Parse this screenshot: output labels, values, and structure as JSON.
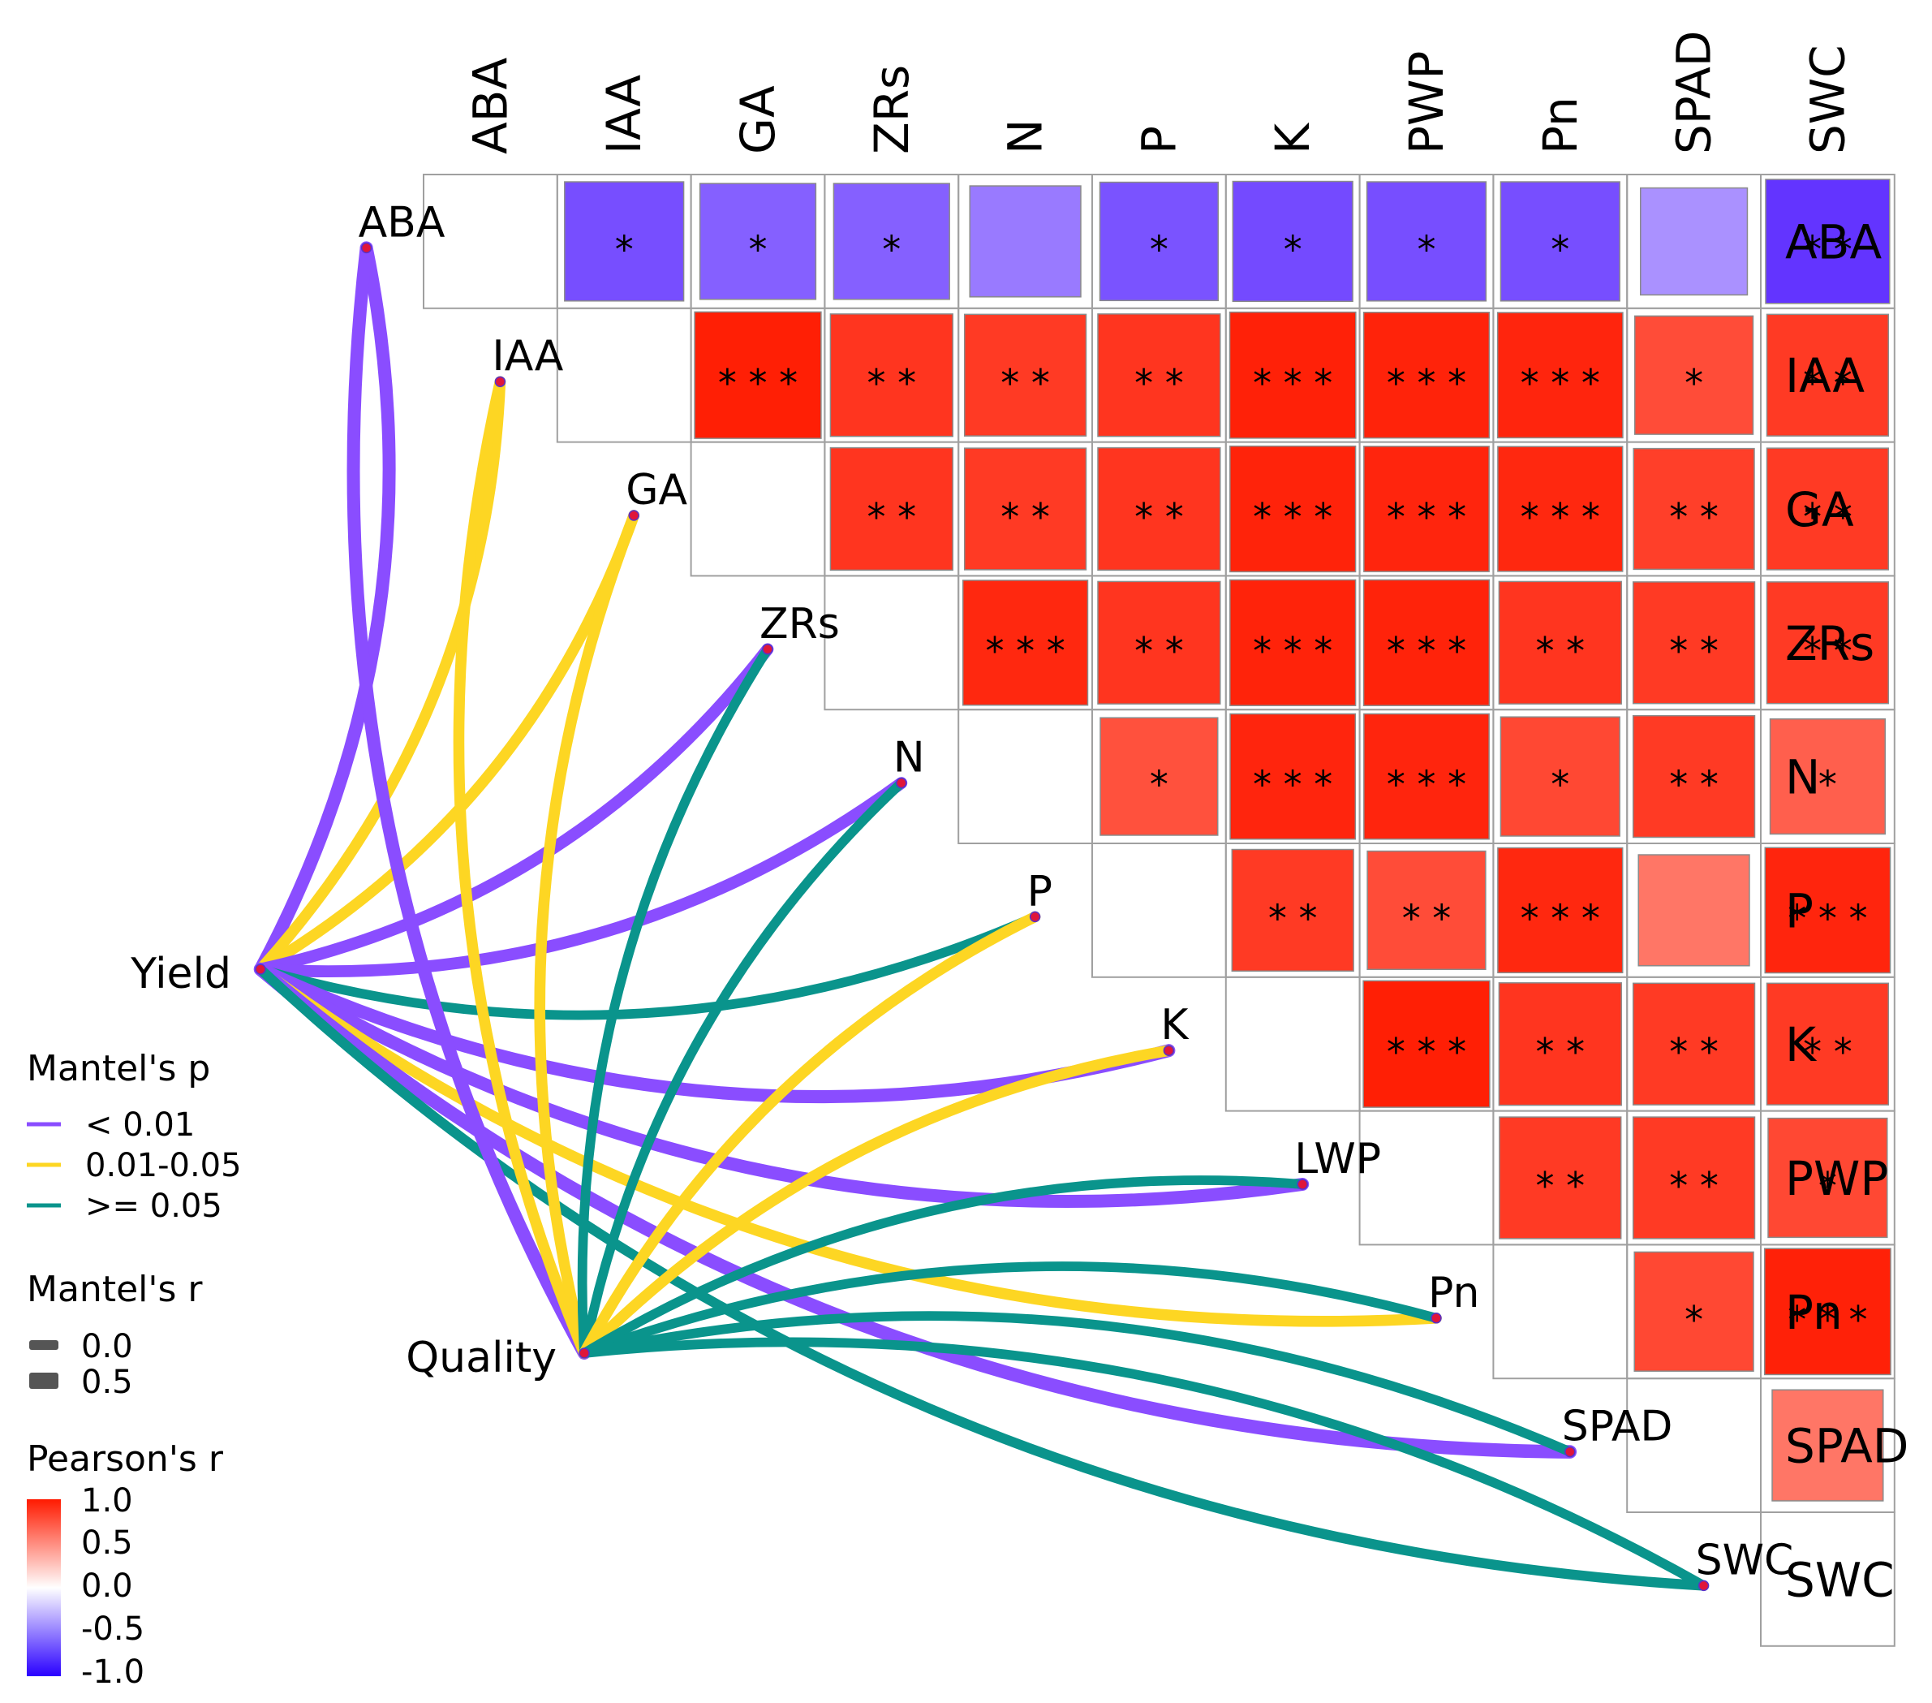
{
  "chart_data": {
    "type": "heatmap",
    "subtype": "mantel-correlation-heatmap",
    "variables": [
      "ABA",
      "IAA",
      "GA",
      "ZRs",
      "N",
      "P",
      "K",
      "PWP",
      "Pn",
      "SPAD",
      "SWC"
    ],
    "row_labels": [
      "ABA",
      "IAA",
      "GA",
      "ZRs",
      "N",
      "P",
      "K",
      "PWP",
      "Pn",
      "SPAD",
      "SWC"
    ],
    "node_labels": [
      "ABA",
      "IAA",
      "GA",
      "ZRs",
      "N",
      "P",
      "K",
      "LWP",
      "Pn",
      "SPAD",
      "SWC"
    ],
    "pearson_cells": [
      {
        "row": "ABA",
        "col": "IAA",
        "r": -0.8,
        "sig": "*"
      },
      {
        "row": "ABA",
        "col": "GA",
        "r": -0.72,
        "sig": "*"
      },
      {
        "row": "ABA",
        "col": "ZRs",
        "r": -0.72,
        "sig": "*"
      },
      {
        "row": "ABA",
        "col": "N",
        "r": -0.6,
        "sig": ""
      },
      {
        "row": "ABA",
        "col": "P",
        "r": -0.78,
        "sig": "*"
      },
      {
        "row": "ABA",
        "col": "K",
        "r": -0.82,
        "sig": "*"
      },
      {
        "row": "ABA",
        "col": "PWP",
        "r": -0.8,
        "sig": "*"
      },
      {
        "row": "ABA",
        "col": "Pn",
        "r": -0.8,
        "sig": "*"
      },
      {
        "row": "ABA",
        "col": "SPAD",
        "r": -0.5,
        "sig": ""
      },
      {
        "row": "ABA",
        "col": "SWC",
        "r": -0.92,
        "sig": "**"
      },
      {
        "row": "IAA",
        "col": "GA",
        "r": 0.98,
        "sig": "***"
      },
      {
        "row": "IAA",
        "col": "ZRs",
        "r": 0.88,
        "sig": "**"
      },
      {
        "row": "IAA",
        "col": "N",
        "r": 0.86,
        "sig": "**"
      },
      {
        "row": "IAA",
        "col": "P",
        "r": 0.88,
        "sig": "**"
      },
      {
        "row": "IAA",
        "col": "K",
        "r": 0.97,
        "sig": "***"
      },
      {
        "row": "IAA",
        "col": "PWP",
        "r": 0.96,
        "sig": "***"
      },
      {
        "row": "IAA",
        "col": "Pn",
        "r": 0.95,
        "sig": "***"
      },
      {
        "row": "IAA",
        "col": "SPAD",
        "r": 0.78,
        "sig": "*"
      },
      {
        "row": "IAA",
        "col": "SWC",
        "r": 0.86,
        "sig": "**"
      },
      {
        "row": "GA",
        "col": "ZRs",
        "r": 0.88,
        "sig": "**"
      },
      {
        "row": "GA",
        "col": "N",
        "r": 0.86,
        "sig": "**"
      },
      {
        "row": "GA",
        "col": "P",
        "r": 0.88,
        "sig": "**"
      },
      {
        "row": "GA",
        "col": "K",
        "r": 0.96,
        "sig": "***"
      },
      {
        "row": "GA",
        "col": "PWP",
        "r": 0.95,
        "sig": "***"
      },
      {
        "row": "GA",
        "col": "Pn",
        "r": 0.94,
        "sig": "***"
      },
      {
        "row": "GA",
        "col": "SPAD",
        "r": 0.84,
        "sig": "**"
      },
      {
        "row": "GA",
        "col": "SWC",
        "r": 0.86,
        "sig": "**"
      },
      {
        "row": "ZRs",
        "col": "N",
        "r": 0.94,
        "sig": "***"
      },
      {
        "row": "ZRs",
        "col": "P",
        "r": 0.88,
        "sig": "**"
      },
      {
        "row": "ZRs",
        "col": "K",
        "r": 0.96,
        "sig": "***"
      },
      {
        "row": "ZRs",
        "col": "PWP",
        "r": 0.96,
        "sig": "***"
      },
      {
        "row": "ZRs",
        "col": "Pn",
        "r": 0.88,
        "sig": "**"
      },
      {
        "row": "ZRs",
        "col": "SPAD",
        "r": 0.86,
        "sig": "**"
      },
      {
        "row": "ZRs",
        "col": "SWC",
        "r": 0.86,
        "sig": "**"
      },
      {
        "row": "N",
        "col": "P",
        "r": 0.76,
        "sig": "*"
      },
      {
        "row": "N",
        "col": "K",
        "r": 0.95,
        "sig": "***"
      },
      {
        "row": "N",
        "col": "PWP",
        "r": 0.95,
        "sig": "***"
      },
      {
        "row": "N",
        "col": "Pn",
        "r": 0.8,
        "sig": "*"
      },
      {
        "row": "N",
        "col": "SPAD",
        "r": 0.86,
        "sig": "**"
      },
      {
        "row": "N",
        "col": "SWC",
        "r": 0.7,
        "sig": "*"
      },
      {
        "row": "P",
        "col": "K",
        "r": 0.86,
        "sig": "**"
      },
      {
        "row": "P",
        "col": "PWP",
        "r": 0.78,
        "sig": "**"
      },
      {
        "row": "P",
        "col": "Pn",
        "r": 0.94,
        "sig": "***"
      },
      {
        "row": "P",
        "col": "SPAD",
        "r": 0.6,
        "sig": ""
      },
      {
        "row": "P",
        "col": "SWC",
        "r": 0.95,
        "sig": "***"
      },
      {
        "row": "K",
        "col": "PWP",
        "r": 0.98,
        "sig": "***"
      },
      {
        "row": "K",
        "col": "Pn",
        "r": 0.88,
        "sig": "**"
      },
      {
        "row": "K",
        "col": "SPAD",
        "r": 0.86,
        "sig": "**"
      },
      {
        "row": "K",
        "col": "SWC",
        "r": 0.86,
        "sig": "**"
      },
      {
        "row": "PWP",
        "col": "Pn",
        "r": 0.86,
        "sig": "**"
      },
      {
        "row": "PWP",
        "col": "SPAD",
        "r": 0.86,
        "sig": "**"
      },
      {
        "row": "PWP",
        "col": "SWC",
        "r": 0.8,
        "sig": "*"
      },
      {
        "row": "Pn",
        "col": "SPAD",
        "r": 0.8,
        "sig": "*"
      },
      {
        "row": "Pn",
        "col": "SWC",
        "r": 0.97,
        "sig": "***"
      },
      {
        "row": "SPAD",
        "col": "SWC",
        "r": 0.6,
        "sig": ""
      }
    ],
    "groups": [
      "Yield",
      "Quality"
    ],
    "mantel_links": [
      {
        "from": "Yield",
        "to": "ABA",
        "p_class": "lt001",
        "r": 0.5
      },
      {
        "from": "Yield",
        "to": "IAA",
        "p_class": "mid",
        "r": 0.3
      },
      {
        "from": "Yield",
        "to": "GA",
        "p_class": "mid",
        "r": 0.3
      },
      {
        "from": "Yield",
        "to": "ZRs",
        "p_class": "lt001",
        "r": 0.4
      },
      {
        "from": "Yield",
        "to": "N",
        "p_class": "lt001",
        "r": 0.4
      },
      {
        "from": "Yield",
        "to": "P",
        "p_class": "ge005",
        "r": 0.15
      },
      {
        "from": "Yield",
        "to": "K",
        "p_class": "lt001",
        "r": 0.5
      },
      {
        "from": "Yield",
        "to": "LWP",
        "p_class": "lt001",
        "r": 0.5
      },
      {
        "from": "Yield",
        "to": "Pn",
        "p_class": "mid",
        "r": 0.3
      },
      {
        "from": "Yield",
        "to": "SPAD",
        "p_class": "lt001",
        "r": 0.55
      },
      {
        "from": "Yield",
        "to": "SWC",
        "p_class": "ge005",
        "r": 0.2
      },
      {
        "from": "Quality",
        "to": "ABA",
        "p_class": "lt001",
        "r": 0.5
      },
      {
        "from": "Quality",
        "to": "IAA",
        "p_class": "mid",
        "r": 0.3
      },
      {
        "from": "Quality",
        "to": "GA",
        "p_class": "mid",
        "r": 0.3
      },
      {
        "from": "Quality",
        "to": "ZRs",
        "p_class": "ge005",
        "r": 0.15
      },
      {
        "from": "Quality",
        "to": "N",
        "p_class": "ge005",
        "r": 0.15
      },
      {
        "from": "Quality",
        "to": "P",
        "p_class": "mid",
        "r": 0.3
      },
      {
        "from": "Quality",
        "to": "K",
        "p_class": "mid",
        "r": 0.3
      },
      {
        "from": "Quality",
        "to": "LWP",
        "p_class": "ge005",
        "r": 0.15
      },
      {
        "from": "Quality",
        "to": "Pn",
        "p_class": "ge005",
        "r": 0.15
      },
      {
        "from": "Quality",
        "to": "SPAD",
        "p_class": "ge005",
        "r": 0.15
      },
      {
        "from": "Quality",
        "to": "SWC",
        "p_class": "ge005",
        "r": 0.15
      }
    ],
    "legend": {
      "mantel_p_title": "Mantel's p",
      "mantel_p_items": [
        {
          "key": "lt001",
          "label": "< 0.01",
          "color": "#8a4dff"
        },
        {
          "key": "mid",
          "label": "0.01-0.05",
          "color": "#fdd623"
        },
        {
          "key": "ge005",
          "label": ">= 0.05",
          "color": "#0a948c"
        }
      ],
      "mantel_r_title": "Mantel's r",
      "mantel_r_items": [
        {
          "label": "0.0",
          "value": 0.0
        },
        {
          "label": "0.5",
          "value": 0.5
        }
      ],
      "pearson_title": "Pearson's r",
      "pearson_ticks": [
        "1.0",
        "0.5",
        "0.0",
        "-0.5",
        "-1.0"
      ],
      "pearson_range": [
        -1.0,
        1.0
      ]
    },
    "colors": {
      "positive": "#ff1a00",
      "negative": "#5522ff",
      "neutral": "#ffffff",
      "cell_border": "#a0a0a0",
      "node_dot": "#e0163a"
    }
  }
}
